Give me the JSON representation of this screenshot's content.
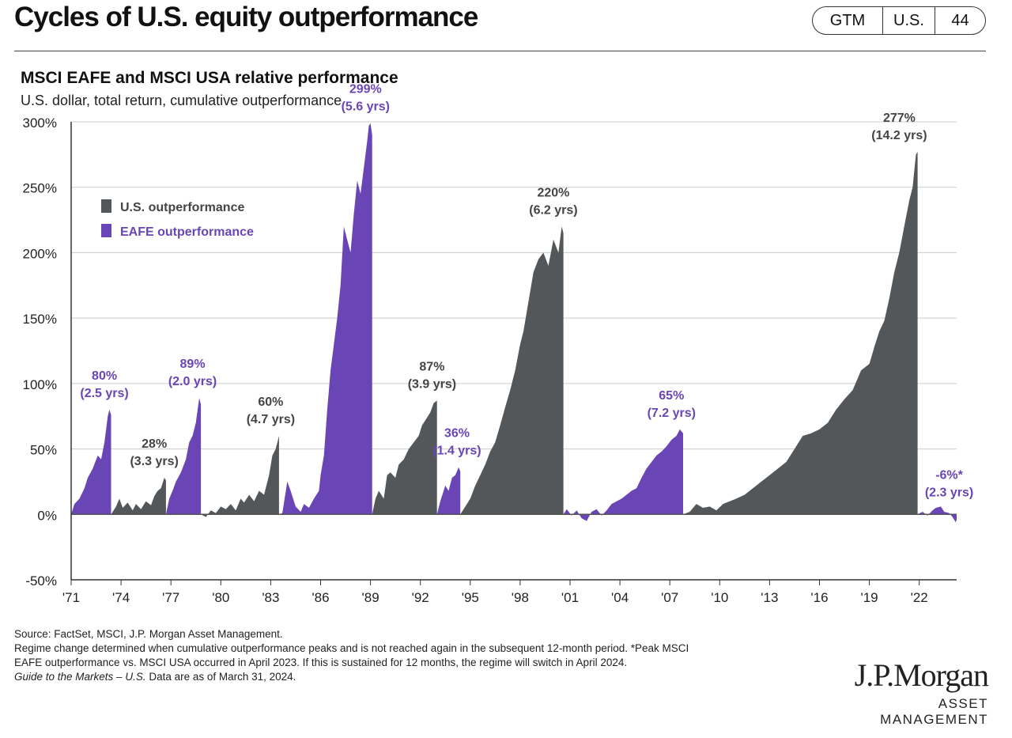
{
  "header": {
    "title": "Cycles of U.S. equity outperformance",
    "tags": {
      "guide": "GTM",
      "region": "U.S.",
      "page": "44"
    }
  },
  "chart_data": {
    "type": "area",
    "title": "MSCI EAFE and MSCI USA relative performance",
    "subtitle": "U.S. dollar, total return, cumulative outperformance",
    "xlabel": "",
    "ylabel": "",
    "ylim": [
      -50,
      300
    ],
    "xlim": [
      1971.0,
      2024.25
    ],
    "y_ticks": [
      "300%",
      "250%",
      "200%",
      "150%",
      "100%",
      "50%",
      "0%",
      "-50%"
    ],
    "y_tick_values": [
      300,
      250,
      200,
      150,
      100,
      50,
      0,
      -50
    ],
    "x_ticks": [
      "'71",
      "'74",
      "'77",
      "'80",
      "'83",
      "'86",
      "'89",
      "'92",
      "'95",
      "'98",
      "'01",
      "'04",
      "'07",
      "'10",
      "'13",
      "'16",
      "'19",
      "'22"
    ],
    "x_tick_values": [
      1971,
      1974,
      1977,
      1980,
      1983,
      1986,
      1989,
      1992,
      1995,
      1998,
      2001,
      2004,
      2007,
      2010,
      2013,
      2016,
      2019,
      2022
    ],
    "grid": "horizontal",
    "legend_position": "top-left",
    "colors": {
      "us": "#54575a",
      "eafe": "#6a45b5",
      "us_label": "#444444",
      "eafe_label": "#6a45b5",
      "grid": "#cccccc"
    },
    "series": [
      {
        "name": "U.S. outperformance",
        "key": "us"
      },
      {
        "name": "EAFE outperformance",
        "key": "eafe"
      }
    ],
    "cycles": [
      {
        "regime": "eafe",
        "start": 1971.0,
        "end": 1973.4,
        "pts": [
          [
            1971.0,
            0
          ],
          [
            1971.2,
            8
          ],
          [
            1971.5,
            12
          ],
          [
            1971.8,
            20
          ],
          [
            1972.0,
            28
          ],
          [
            1972.3,
            35
          ],
          [
            1972.6,
            45
          ],
          [
            1972.8,
            42
          ],
          [
            1973.0,
            55
          ],
          [
            1973.2,
            75
          ],
          [
            1973.3,
            80
          ],
          [
            1973.4,
            76
          ]
        ]
      },
      {
        "regime": "us",
        "start": 1973.4,
        "end": 1976.7,
        "pts": [
          [
            1973.4,
            0
          ],
          [
            1973.7,
            6
          ],
          [
            1973.9,
            12
          ],
          [
            1974.1,
            5
          ],
          [
            1974.4,
            9
          ],
          [
            1974.7,
            3
          ],
          [
            1974.9,
            8
          ],
          [
            1975.2,
            4
          ],
          [
            1975.5,
            10
          ],
          [
            1975.8,
            7
          ],
          [
            1976.0,
            14
          ],
          [
            1976.2,
            18
          ],
          [
            1976.4,
            20
          ],
          [
            1976.6,
            28
          ],
          [
            1976.7,
            26
          ]
        ]
      },
      {
        "regime": "eafe",
        "start": 1976.7,
        "end": 1978.8,
        "pts": [
          [
            1976.7,
            0
          ],
          [
            1976.9,
            12
          ],
          [
            1977.1,
            18
          ],
          [
            1977.3,
            25
          ],
          [
            1977.6,
            32
          ],
          [
            1977.9,
            42
          ],
          [
            1978.1,
            55
          ],
          [
            1978.3,
            60
          ],
          [
            1978.5,
            70
          ],
          [
            1978.7,
            89
          ],
          [
            1978.8,
            84
          ]
        ]
      },
      {
        "regime": "us",
        "start": 1978.8,
        "end": 1983.5,
        "pts": [
          [
            1978.8,
            0
          ],
          [
            1979.1,
            -2
          ],
          [
            1979.4,
            3
          ],
          [
            1979.7,
            1
          ],
          [
            1980.0,
            6
          ],
          [
            1980.3,
            4
          ],
          [
            1980.6,
            8
          ],
          [
            1980.9,
            3
          ],
          [
            1981.2,
            12
          ],
          [
            1981.4,
            9
          ],
          [
            1981.7,
            15
          ],
          [
            1982.0,
            10
          ],
          [
            1982.3,
            18
          ],
          [
            1982.6,
            15
          ],
          [
            1982.9,
            30
          ],
          [
            1983.1,
            45
          ],
          [
            1983.3,
            50
          ],
          [
            1983.5,
            60
          ]
        ]
      },
      {
        "regime": "eafe",
        "start": 1983.5,
        "end": 1989.1,
        "pts": [
          [
            1983.5,
            0
          ],
          [
            1983.7,
            1
          ],
          [
            1984.0,
            25
          ],
          [
            1984.2,
            18
          ],
          [
            1984.5,
            6
          ],
          [
            1984.8,
            2
          ],
          [
            1985.0,
            8
          ],
          [
            1985.3,
            5
          ],
          [
            1985.6,
            12
          ],
          [
            1985.9,
            18
          ],
          [
            1986.0,
            30
          ],
          [
            1986.2,
            45
          ],
          [
            1986.4,
            80
          ],
          [
            1986.6,
            110
          ],
          [
            1986.8,
            130
          ],
          [
            1987.0,
            150
          ],
          [
            1987.2,
            175
          ],
          [
            1987.4,
            220
          ],
          [
            1987.6,
            210
          ],
          [
            1987.8,
            200
          ],
          [
            1988.0,
            230
          ],
          [
            1988.2,
            255
          ],
          [
            1988.4,
            245
          ],
          [
            1988.6,
            265
          ],
          [
            1988.8,
            285
          ],
          [
            1988.9,
            297
          ],
          [
            1989.0,
            299
          ],
          [
            1989.1,
            290
          ]
        ]
      },
      {
        "regime": "us",
        "start": 1989.1,
        "end": 1993.0,
        "pts": [
          [
            1989.1,
            0
          ],
          [
            1989.3,
            12
          ],
          [
            1989.5,
            18
          ],
          [
            1989.8,
            12
          ],
          [
            1990.0,
            30
          ],
          [
            1990.2,
            32
          ],
          [
            1990.5,
            28
          ],
          [
            1990.7,
            38
          ],
          [
            1991.0,
            42
          ],
          [
            1991.3,
            50
          ],
          [
            1991.6,
            55
          ],
          [
            1991.9,
            60
          ],
          [
            1992.1,
            68
          ],
          [
            1992.3,
            72
          ],
          [
            1992.6,
            78
          ],
          [
            1992.8,
            85
          ],
          [
            1993.0,
            87
          ]
        ]
      },
      {
        "regime": "eafe",
        "start": 1993.0,
        "end": 1994.4,
        "pts": [
          [
            1993.0,
            0
          ],
          [
            1993.2,
            10
          ],
          [
            1993.5,
            22
          ],
          [
            1993.7,
            18
          ],
          [
            1993.9,
            28
          ],
          [
            1994.1,
            30
          ],
          [
            1994.3,
            36
          ],
          [
            1994.4,
            33
          ]
        ]
      },
      {
        "regime": "us",
        "start": 1994.4,
        "end": 2000.6,
        "pts": [
          [
            1994.4,
            0
          ],
          [
            1994.7,
            6
          ],
          [
            1995.0,
            12
          ],
          [
            1995.3,
            22
          ],
          [
            1995.6,
            30
          ],
          [
            1995.9,
            38
          ],
          [
            1996.2,
            48
          ],
          [
            1996.5,
            55
          ],
          [
            1996.8,
            68
          ],
          [
            1997.1,
            82
          ],
          [
            1997.4,
            95
          ],
          [
            1997.7,
            110
          ],
          [
            1998.0,
            130
          ],
          [
            1998.2,
            140
          ],
          [
            1998.4,
            155
          ],
          [
            1998.6,
            170
          ],
          [
            1998.8,
            185
          ],
          [
            1999.1,
            195
          ],
          [
            1999.4,
            200
          ],
          [
            1999.7,
            190
          ],
          [
            2000.0,
            210
          ],
          [
            2000.3,
            200
          ],
          [
            2000.5,
            220
          ],
          [
            2000.6,
            215
          ]
        ]
      },
      {
        "regime": "eafe",
        "start": 2000.6,
        "end": 2007.8,
        "pts": [
          [
            2000.6,
            0
          ],
          [
            2000.8,
            4
          ],
          [
            2001.1,
            -1
          ],
          [
            2001.4,
            3
          ],
          [
            2001.7,
            -3
          ],
          [
            2002.0,
            -5
          ],
          [
            2002.3,
            2
          ],
          [
            2002.6,
            4
          ],
          [
            2002.9,
            -1
          ],
          [
            2003.2,
            3
          ],
          [
            2003.5,
            8
          ],
          [
            2003.8,
            10
          ],
          [
            2004.1,
            12
          ],
          [
            2004.4,
            15
          ],
          [
            2004.7,
            18
          ],
          [
            2005.0,
            20
          ],
          [
            2005.3,
            28
          ],
          [
            2005.6,
            35
          ],
          [
            2005.9,
            40
          ],
          [
            2006.2,
            45
          ],
          [
            2006.5,
            48
          ],
          [
            2006.8,
            52
          ],
          [
            2007.1,
            57
          ],
          [
            2007.4,
            60
          ],
          [
            2007.6,
            65
          ],
          [
            2007.8,
            62
          ]
        ]
      },
      {
        "regime": "us",
        "start": 2007.8,
        "end": 2021.9,
        "pts": [
          [
            2007.8,
            0
          ],
          [
            2008.2,
            2
          ],
          [
            2008.6,
            8
          ],
          [
            2009.0,
            5
          ],
          [
            2009.4,
            6
          ],
          [
            2009.8,
            3
          ],
          [
            2010.2,
            8
          ],
          [
            2010.6,
            10
          ],
          [
            2011.0,
            12
          ],
          [
            2011.5,
            15
          ],
          [
            2012.0,
            20
          ],
          [
            2012.5,
            25
          ],
          [
            2013.0,
            30
          ],
          [
            2013.5,
            35
          ],
          [
            2014.0,
            40
          ],
          [
            2014.5,
            50
          ],
          [
            2015.0,
            60
          ],
          [
            2015.5,
            62
          ],
          [
            2016.0,
            65
          ],
          [
            2016.5,
            70
          ],
          [
            2017.0,
            80
          ],
          [
            2017.5,
            88
          ],
          [
            2018.0,
            95
          ],
          [
            2018.5,
            110
          ],
          [
            2019.0,
            115
          ],
          [
            2019.3,
            128
          ],
          [
            2019.6,
            140
          ],
          [
            2019.9,
            148
          ],
          [
            2020.2,
            165
          ],
          [
            2020.5,
            185
          ],
          [
            2020.8,
            200
          ],
          [
            2021.1,
            220
          ],
          [
            2021.4,
            240
          ],
          [
            2021.6,
            250
          ],
          [
            2021.8,
            275
          ],
          [
            2021.9,
            277
          ]
        ]
      },
      {
        "regime": "eafe",
        "start": 2021.9,
        "end": 2024.25,
        "pts": [
          [
            2021.9,
            0
          ],
          [
            2022.2,
            2
          ],
          [
            2022.5,
            -1
          ],
          [
            2022.8,
            3
          ],
          [
            2023.0,
            5
          ],
          [
            2023.3,
            6
          ],
          [
            2023.5,
            2
          ],
          [
            2023.8,
            1
          ],
          [
            2024.0,
            -2
          ],
          [
            2024.2,
            -6
          ],
          [
            2024.25,
            -4
          ]
        ]
      }
    ],
    "annotations": [
      {
        "regime": "eafe",
        "value": "80%",
        "duration": "(2.5 yrs)",
        "x": 1973.0,
        "y": 80
      },
      {
        "regime": "us",
        "value": "28%",
        "duration": "(3.3 yrs)",
        "x": 1976.0,
        "y": 28
      },
      {
        "regime": "eafe",
        "value": "89%",
        "duration": "(2.0 yrs)",
        "x": 1978.3,
        "y": 89
      },
      {
        "regime": "us",
        "value": "60%",
        "duration": "(4.7 yrs)",
        "x": 1983.0,
        "y": 60
      },
      {
        "regime": "eafe",
        "value": "299%",
        "duration": "(5.6 yrs)",
        "x": 1988.7,
        "y": 299
      },
      {
        "regime": "us",
        "value": "87%",
        "duration": "(3.9 yrs)",
        "x": 1992.7,
        "y": 87
      },
      {
        "regime": "eafe",
        "value": "36%",
        "duration": "(1.4 yrs)",
        "x": 1994.2,
        "y": 36
      },
      {
        "regime": "us",
        "value": "220%",
        "duration": "(6.2 yrs)",
        "x": 2000.0,
        "y": 220
      },
      {
        "regime": "eafe",
        "value": "65%",
        "duration": "(7.2 yrs)",
        "x": 2007.1,
        "y": 65
      },
      {
        "regime": "us",
        "value": "277%",
        "duration": "(14.2 yrs)",
        "x": 2020.8,
        "y": 277
      },
      {
        "regime": "eafe",
        "value": "-6%*",
        "duration": "(2.3 yrs)",
        "x": 2023.8,
        "y": 4
      }
    ]
  },
  "footnotes": {
    "source": "Source: FactSet, MSCI, J.P. Morgan Asset Management.",
    "line1": "Regime change determined when cumulative outperformance peaks and is not reached again in the subsequent 12-month period. *Peak MSCI",
    "line2": "EAFE outperformance vs. MSCI USA occurred in April 2023. If this is sustained for 12 months, the regime will switch in April 2024.",
    "guide": "Guide to the Markets – U.S.",
    "asof": " Data are as of March 31, 2024."
  },
  "logo": {
    "wordmark": "J.P.Morgan",
    "tagline": "ASSET MANAGEMENT"
  }
}
